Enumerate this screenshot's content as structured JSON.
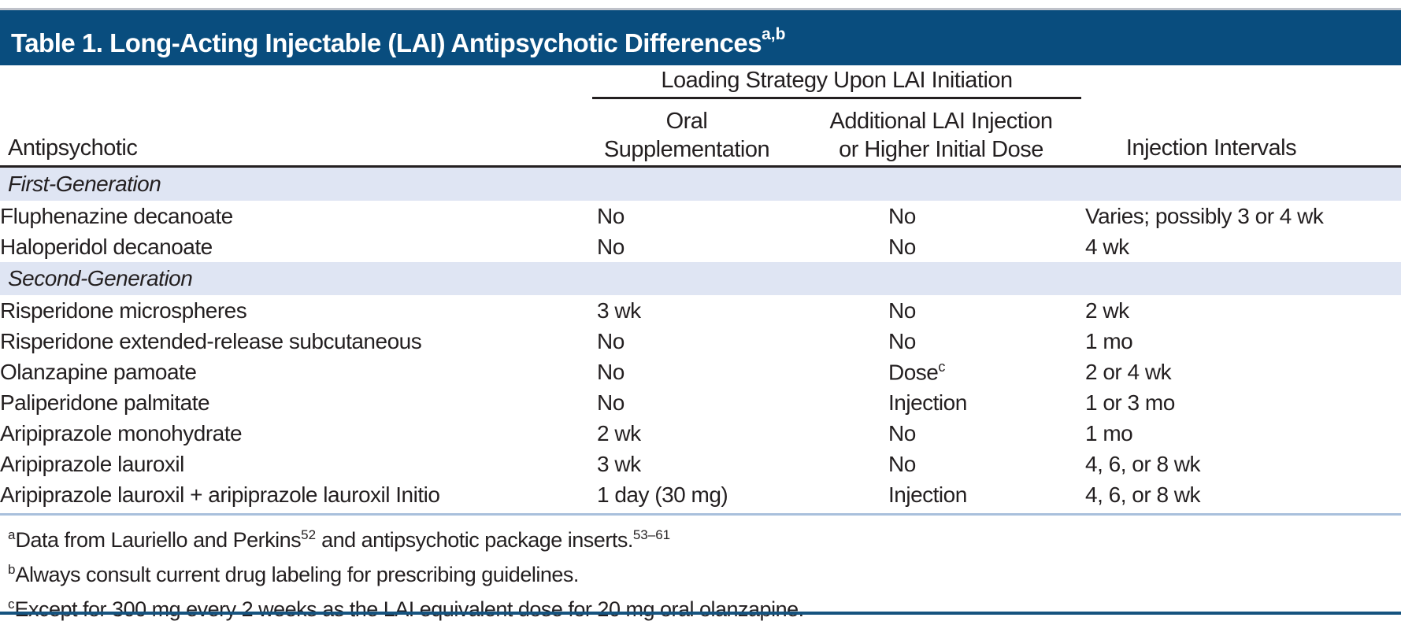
{
  "title": {
    "text": "Table 1. Long-Acting Injectable (LAI) Antipsychotic Differences",
    "superscript": "a,b"
  },
  "table": {
    "header": {
      "antipsychotic": "Antipsychotic",
      "spanner": "Loading Strategy Upon LAI Initiation",
      "oral_line1": "Oral",
      "oral_line2": "Supplementation",
      "additional_line1": "Additional LAI Injection",
      "additional_line2": "or Higher Initial Dose",
      "injection_intervals": "Injection Intervals"
    },
    "sections": [
      {
        "label": "First-Generation",
        "rows": [
          {
            "antipsychotic": "Fluphenazine decanoate",
            "oral_supplementation": "No",
            "additional_lai": "No",
            "injection_intervals": "Varies; possibly 3 or 4 wk"
          },
          {
            "antipsychotic": "Haloperidol decanoate",
            "oral_supplementation": "No",
            "additional_lai": "No",
            "injection_intervals": "4 wk"
          }
        ]
      },
      {
        "label": "Second-Generation",
        "rows": [
          {
            "antipsychotic": "Risperidone microspheres",
            "oral_supplementation": "3 wk",
            "additional_lai": "No",
            "injection_intervals": "2 wk"
          },
          {
            "antipsychotic": "Risperidone extended-release subcutaneous",
            "oral_supplementation": "No",
            "additional_lai": "No",
            "injection_intervals": "1 mo"
          },
          {
            "antipsychotic": "Olanzapine pamoate",
            "oral_supplementation": "No",
            "additional_lai": "Dose",
            "additional_lai_sup": "c",
            "injection_intervals": "2 or 4 wk"
          },
          {
            "antipsychotic": "Paliperidone palmitate",
            "oral_supplementation": "No",
            "additional_lai": "Injection",
            "injection_intervals": "1 or 3 mo"
          },
          {
            "antipsychotic": "Aripiprazole monohydrate",
            "oral_supplementation": "2 wk",
            "additional_lai": "No",
            "injection_intervals": "1 mo"
          },
          {
            "antipsychotic": "Aripiprazole lauroxil",
            "oral_supplementation": "3 wk",
            "additional_lai": "No",
            "injection_intervals": "4, 6, or 8 wk"
          },
          {
            "antipsychotic": "Aripiprazole lauroxil + aripiprazole lauroxil Initio",
            "oral_supplementation": "1 day (30 mg)",
            "additional_lai": "Injection",
            "injection_intervals": "4, 6, or 8 wk"
          }
        ]
      }
    ]
  },
  "footnotes": [
    {
      "marker": "a",
      "parts": [
        {
          "t": "Data from Lauriello and Perkins"
        },
        {
          "sup": "52"
        },
        {
          "t": " and antipsychotic package inserts."
        },
        {
          "sup": "53–61"
        }
      ]
    },
    {
      "marker": "b",
      "parts": [
        {
          "t": "Always consult current drug labeling for prescribing guidelines."
        }
      ]
    },
    {
      "marker": "c",
      "parts": [
        {
          "t": "Except for 300 mg every 2 weeks as the LAI equivalent dose for 20 mg oral olanzapine."
        }
      ]
    }
  ],
  "colors": {
    "navy": "#094d7e",
    "band": "#dfe5f3",
    "rule-black": "#231f20",
    "rule-light-blue": "#a9c0dc",
    "rule-bottom": "#15537f",
    "rule-top": "#bfc2ca",
    "text": "#231f20"
  }
}
